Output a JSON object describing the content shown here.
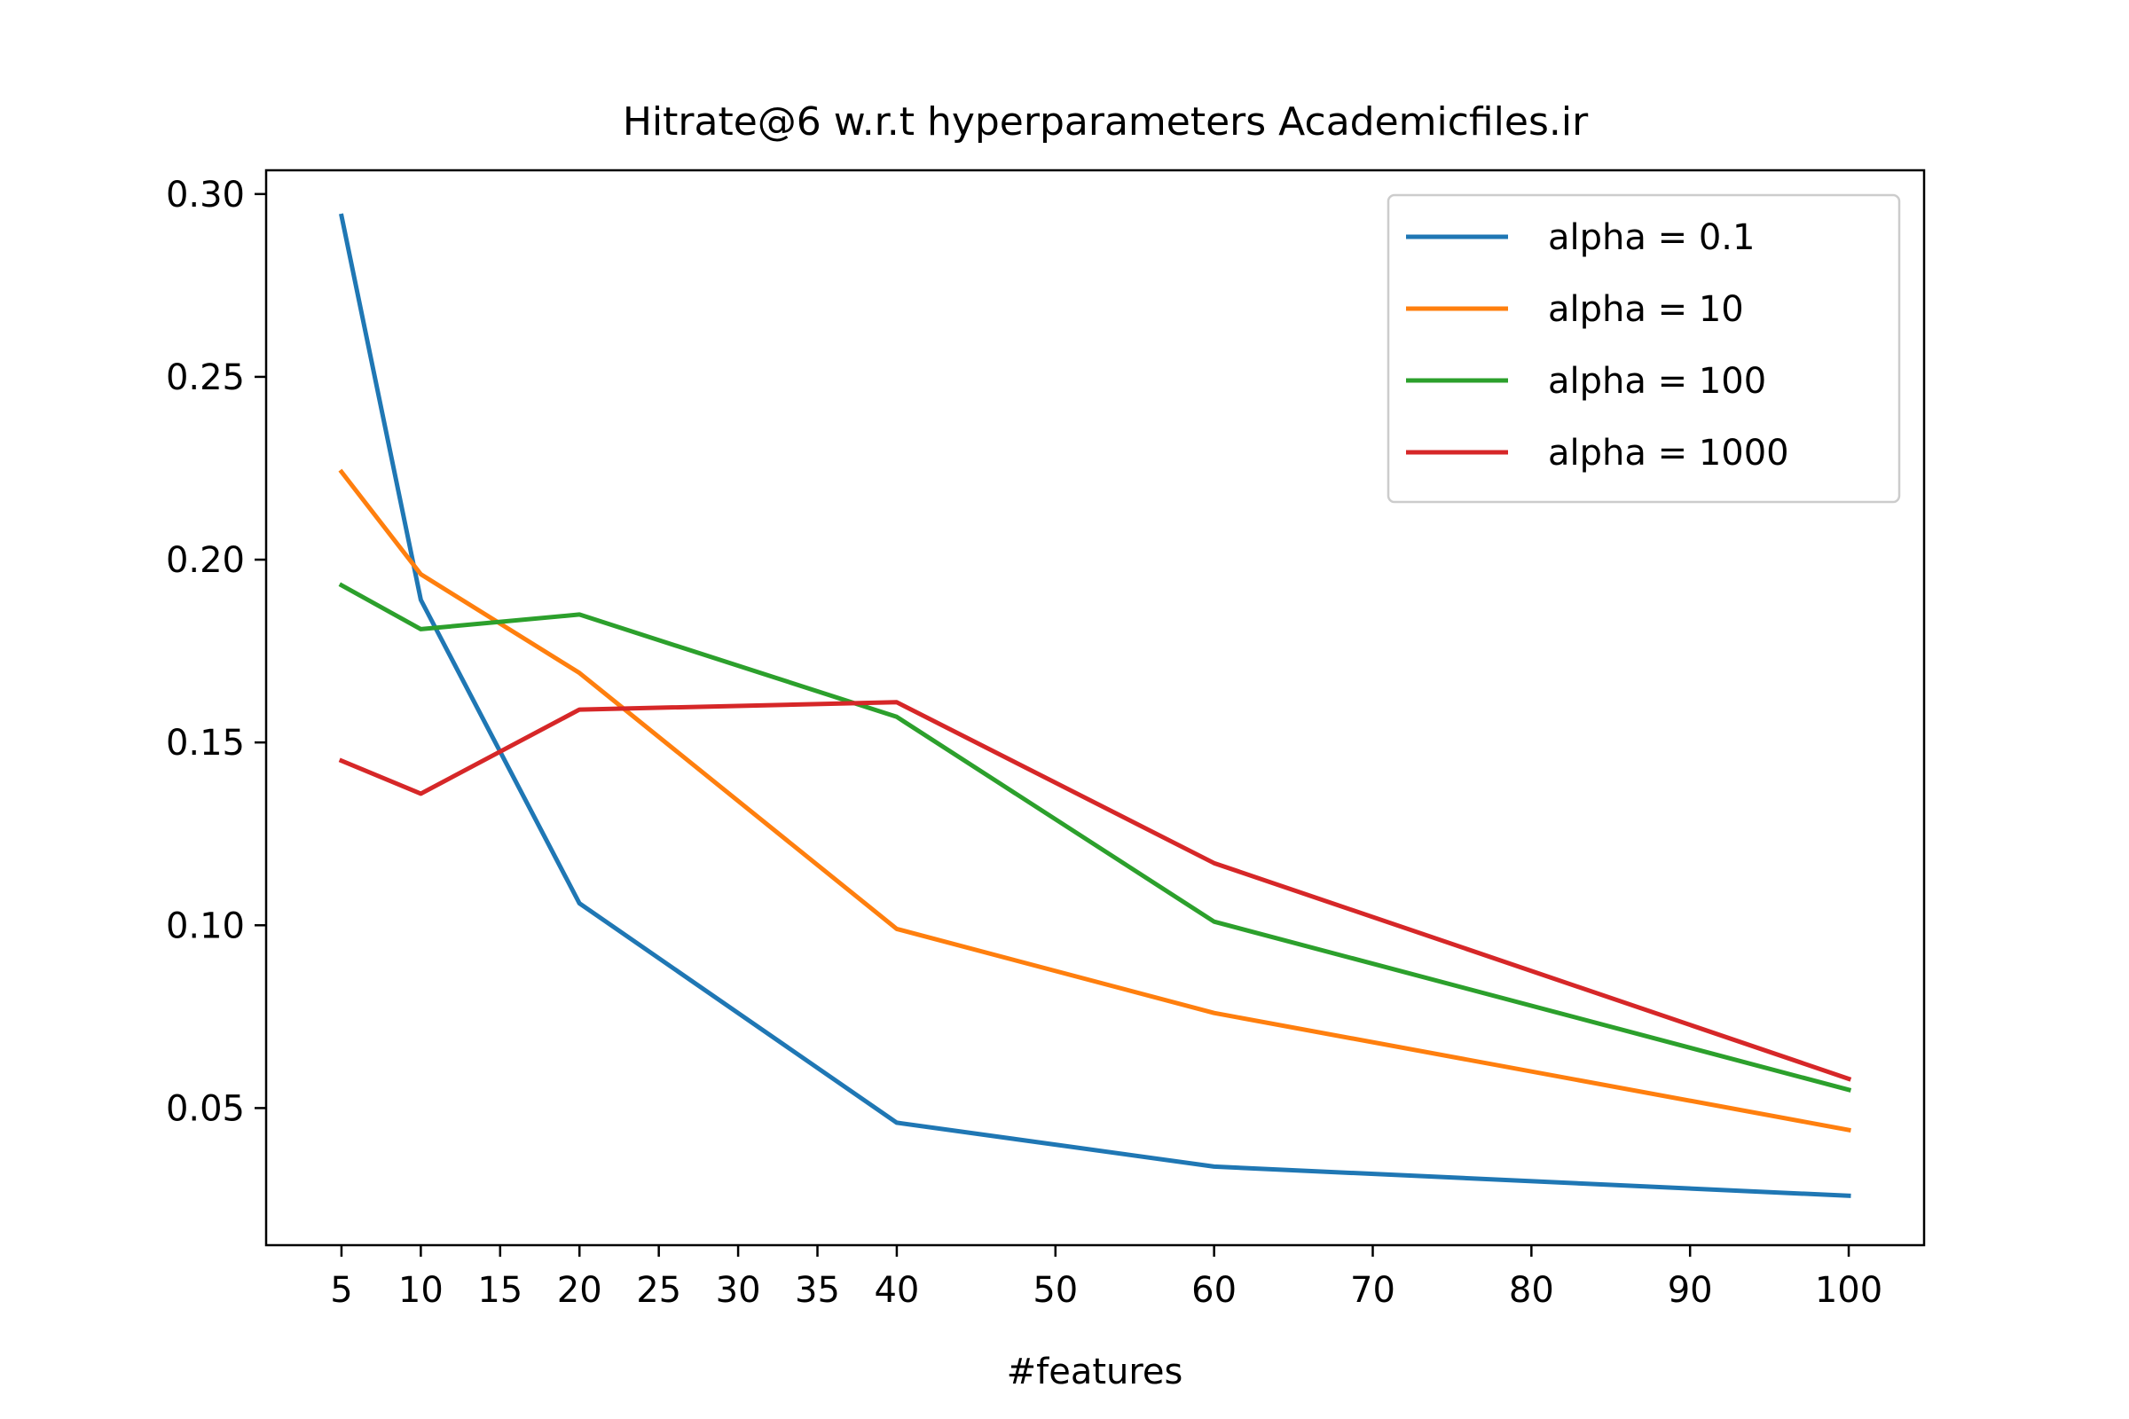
{
  "chart_data": {
    "type": "line",
    "title": "Hitrate@6 w.r.t hyperparameters Academicfiles.ir",
    "xlabel": "#features",
    "ylabel": "",
    "x": [
      5,
      10,
      20,
      40,
      60,
      100
    ],
    "x_ticks": [
      5,
      10,
      15,
      20,
      25,
      30,
      35,
      40,
      50,
      60,
      70,
      80,
      90,
      100
    ],
    "x_tick_labels": [
      "5",
      "10",
      "15",
      "20",
      "25",
      "30",
      "35",
      "40",
      "50",
      "60",
      "70",
      "80",
      "90",
      "100"
    ],
    "y_ticks": [
      0.05,
      0.1,
      0.15,
      0.2,
      0.25,
      0.3
    ],
    "y_tick_labels": [
      "0.05",
      "0.10",
      "0.15",
      "0.20",
      "0.25",
      "0.30"
    ],
    "xlim": [
      0.25,
      104.75
    ],
    "ylim": [
      0.0125,
      0.3065
    ],
    "grid": false,
    "legend_position": "top-right",
    "series": [
      {
        "name": "alpha = 0.1",
        "color": "#1f77b4",
        "values": [
          0.294,
          0.189,
          0.106,
          0.046,
          0.034,
          0.026
        ]
      },
      {
        "name": "alpha = 10",
        "color": "#ff7f0e",
        "values": [
          0.224,
          0.196,
          0.169,
          0.099,
          0.076,
          0.044
        ]
      },
      {
        "name": "alpha = 100",
        "color": "#2ca02c",
        "values": [
          0.193,
          0.181,
          0.185,
          0.157,
          0.101,
          0.055
        ]
      },
      {
        "name": "alpha = 1000",
        "color": "#d62728",
        "values": [
          0.145,
          0.136,
          0.159,
          0.161,
          0.117,
          0.058
        ]
      }
    ]
  }
}
